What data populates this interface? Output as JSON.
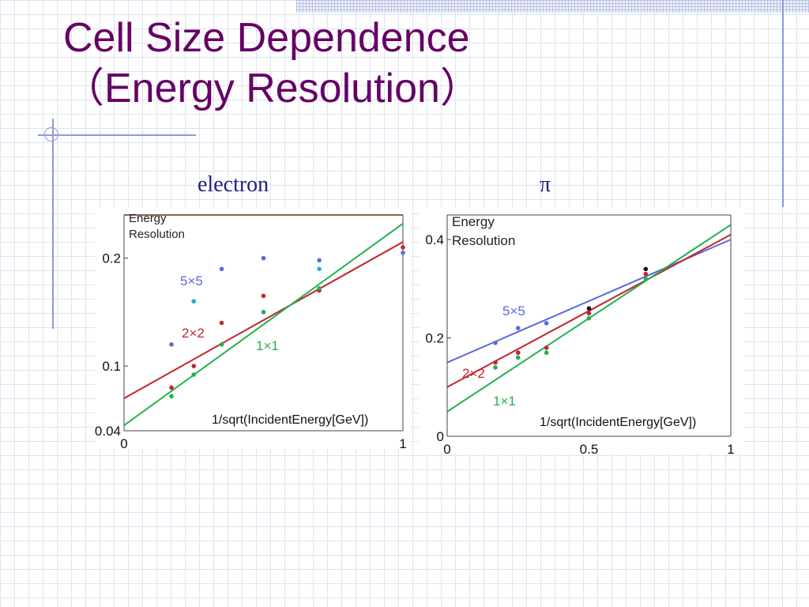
{
  "slide": {
    "title_line1": "Cell Size Dependence",
    "title_line2": "（Energy Resolution）"
  },
  "colors": {
    "title": "#660066",
    "blue": "#5a6bdc",
    "cyan": "#22b3c8",
    "red": "#c0262d",
    "green": "#22b14c",
    "black": "#111111"
  },
  "chart_data": [
    {
      "type": "scatter",
      "panel_label": "electron",
      "plot_title": "Energy Resolution",
      "xlabel": "1/sqrt(IncidentEnergy[GeV])",
      "x_ticks": [
        "0",
        "1"
      ],
      "y_ticks": [
        "0.04",
        "0.1",
        "0.2"
      ],
      "xlim": [
        0,
        1
      ],
      "ylim": [
        0.04,
        0.24
      ],
      "y_tick_values": [
        0.04,
        0.1,
        0.2
      ],
      "series": [
        {
          "name": "5×5",
          "color": "blue",
          "x": [
            0.17,
            0.25,
            0.35,
            0.5,
            0.7,
            1.0
          ],
          "y": [
            0.12,
            0.16,
            0.19,
            0.2,
            0.198,
            0.205
          ],
          "line": null
        },
        {
          "name": "2×2",
          "color": "red",
          "x": [
            0.17,
            0.25,
            0.35,
            0.5,
            0.7,
            1.0
          ],
          "y": [
            0.08,
            0.1,
            0.14,
            0.165,
            0.17,
            0.21
          ],
          "line": [
            [
              0.0,
              0.07
            ],
            [
              1.0,
              0.215
            ]
          ]
        },
        {
          "name": "1×1",
          "color": "green",
          "x": [
            0.17,
            0.25,
            0.35,
            0.5,
            0.7
          ],
          "y": [
            0.072,
            0.092,
            0.12,
            0.15,
            0.172
          ],
          "line": [
            [
              0.0,
              0.045
            ],
            [
              1.0,
              0.232
            ]
          ]
        }
      ],
      "extra_points": [
        {
          "color": "cyan",
          "x": [
            0.25,
            0.7
          ],
          "y": [
            0.16,
            0.19
          ]
        }
      ]
    },
    {
      "type": "scatter",
      "panel_label": "π",
      "plot_title": "Energy Resolution",
      "xlabel": "1/sqrt(IncidentEnergy[GeV])",
      "x_ticks": [
        "0",
        "0.5",
        "1"
      ],
      "y_ticks": [
        "0",
        "0.2",
        "0.4"
      ],
      "xlim": [
        0,
        1
      ],
      "ylim": [
        0,
        0.45
      ],
      "y_tick_values": [
        0,
        0.2,
        0.4
      ],
      "series": [
        {
          "name": "5×5",
          "color": "blue",
          "x": [
            0.17,
            0.25,
            0.35
          ],
          "y": [
            0.19,
            0.22,
            0.23
          ],
          "line": [
            [
              0.0,
              0.15
            ],
            [
              1.0,
              0.4
            ]
          ]
        },
        {
          "name": "2×2",
          "color": "red",
          "x": [
            0.17,
            0.25,
            0.35,
            0.5,
            0.7
          ],
          "y": [
            0.15,
            0.17,
            0.18,
            0.25,
            0.33
          ],
          "line": [
            [
              0.0,
              0.1
            ],
            [
              1.0,
              0.41
            ]
          ]
        },
        {
          "name": "1×1",
          "color": "green",
          "x": [
            0.17,
            0.25,
            0.35,
            0.5,
            0.7
          ],
          "y": [
            0.14,
            0.16,
            0.17,
            0.24,
            0.32
          ],
          "line": [
            [
              0.0,
              0.05
            ],
            [
              1.0,
              0.43
            ]
          ]
        }
      ],
      "extra_points": [
        {
          "color": "black",
          "x": [
            0.5,
            0.7
          ],
          "y": [
            0.26,
            0.34
          ]
        }
      ]
    }
  ]
}
